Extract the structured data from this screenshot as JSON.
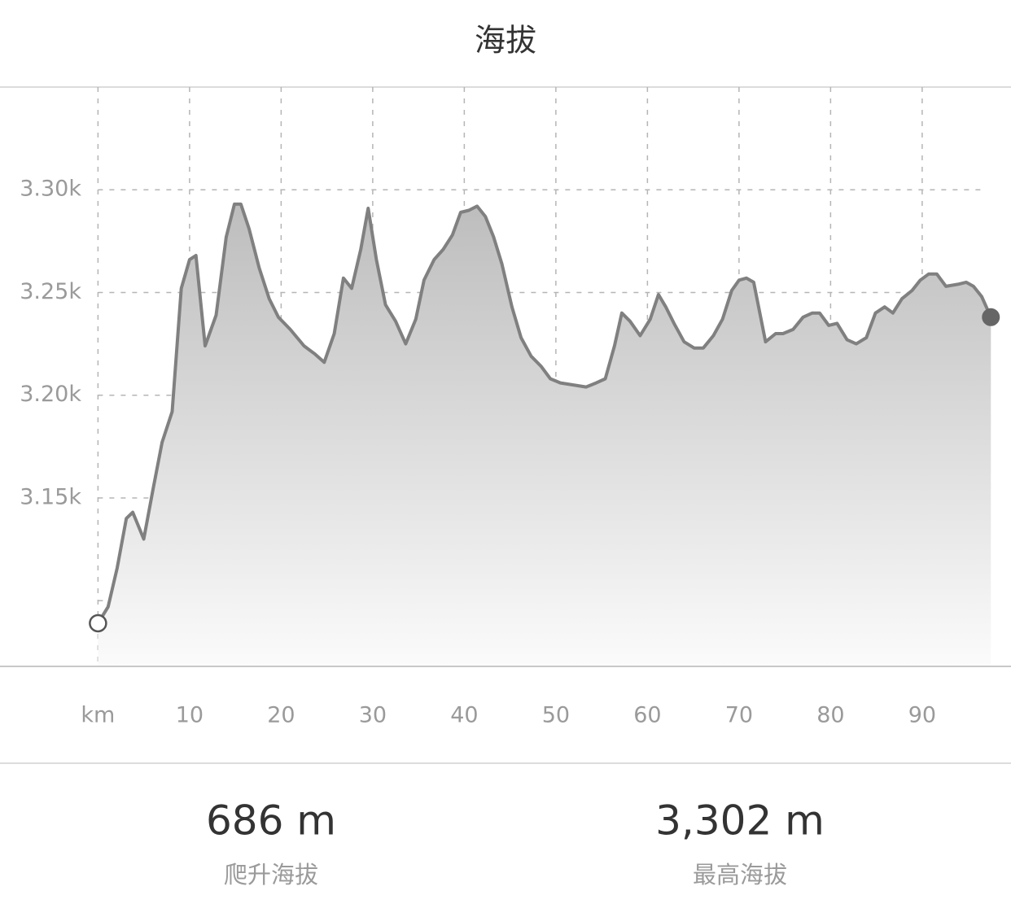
{
  "chart_data": {
    "type": "area",
    "title": "海拔",
    "x": [
      0,
      1.1,
      2.1,
      3.1,
      3.8,
      5.0,
      6.0,
      7.0,
      8.1,
      9.1,
      10.0,
      10.7,
      11.7,
      12.9,
      14.0,
      14.9,
      15.6,
      16.5,
      17.6,
      18.7,
      19.7,
      21.0,
      22.5,
      23.7,
      24.7,
      25.8,
      26.8,
      27.7,
      28.7,
      29.5,
      30.4,
      31.4,
      32.5,
      33.6,
      34.7,
      35.6,
      36.7,
      37.7,
      38.7,
      39.6,
      40.5,
      41.4,
      42.3,
      43.2,
      44.1,
      45.2,
      46.2,
      47.3,
      48.4,
      49.4,
      50.5,
      51.9,
      53.3,
      54.4,
      55.4,
      56.4,
      57.2,
      58.1,
      59.2,
      60.3,
      61.2,
      62.0,
      62.9,
      64.0,
      65.1,
      66.1,
      67.2,
      68.2,
      69.2,
      70.0,
      70.8,
      71.6,
      72.9,
      74.0,
      74.8,
      75.9,
      77.0,
      78.0,
      78.8,
      79.8,
      80.7,
      81.8,
      82.8,
      83.9,
      84.9,
      85.9,
      86.8,
      87.8,
      88.9,
      89.8,
      90.7,
      91.6,
      92.6,
      93.9,
      94.8,
      95.6,
      96.5,
      97.5
    ],
    "series": [
      {
        "color": "#808080",
        "values": [
          3089,
          3097,
          3116,
          3140,
          3143,
          3130,
          3154,
          3177,
          3192,
          3252,
          3266,
          3268,
          3224,
          3239,
          3277,
          3293,
          3293,
          3281,
          3262,
          3247,
          3238,
          3232,
          3224,
          3220,
          3216,
          3230,
          3257,
          3252,
          3271,
          3291,
          3266,
          3244,
          3236,
          3225,
          3237,
          3256,
          3266,
          3271,
          3278,
          3289,
          3290,
          3292,
          3287,
          3277,
          3264,
          3243,
          3228,
          3219,
          3214,
          3208,
          3206,
          3205,
          3204,
          3206,
          3208,
          3224,
          3240,
          3236,
          3229,
          3237,
          3249,
          3243,
          3235,
          3226,
          3223,
          3223,
          3229,
          3237,
          3251,
          3256,
          3257,
          3255,
          3226,
          3230,
          3230,
          3232,
          3238,
          3240,
          3240,
          3234,
          3235,
          3227,
          3225,
          3228,
          3240,
          3243,
          3240,
          3247,
          3251,
          3256,
          3259,
          3259,
          3253,
          3254,
          3255,
          3253,
          3248,
          3238
        ]
      }
    ],
    "xlim": [
      -10.7,
      99.7
    ],
    "ylim": [
      3068,
      3350
    ],
    "xticks": [
      {
        "value": 0,
        "label": "km"
      },
      10,
      20,
      30,
      40,
      50,
      60,
      70,
      80,
      90
    ],
    "yticks": [
      {
        "value": 3100,
        "label": null
      },
      {
        "value": 3150,
        "label": "3.15k"
      },
      {
        "value": 3200,
        "label": "3.20k"
      },
      {
        "value": 3250,
        "label": "3.25k"
      },
      {
        "value": 3300,
        "label": "3.30k"
      }
    ],
    "grid": true,
    "stats": [
      {
        "value": "686 m",
        "label": "爬升海拔"
      },
      {
        "value": "3,302 m",
        "label": "最高海拔"
      }
    ]
  }
}
